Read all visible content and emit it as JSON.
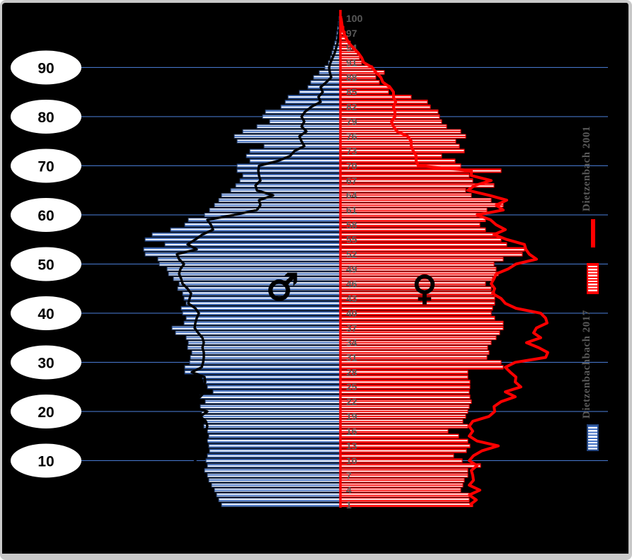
{
  "frame": {
    "background": "#000000",
    "border_color": "#C9C9C9"
  },
  "colors": {
    "male_bar_stripe": "#4472C4",
    "male_bar_outline": "#1F3864",
    "female_bar_stripe": "#FF0000",
    "female_bar_outline": "#FF0000",
    "male_2001_line": "#000000",
    "female_2001_line": "#FF0000",
    "center_axis_line": "#FF0000",
    "gridline": "#4472C4",
    "axis_tick_text": "#595959",
    "oval_fill": "#FFFFFF",
    "oval_text": "#000000",
    "sex_symbol": "#000000"
  },
  "icons": {
    "male": "♂",
    "female": "♀"
  },
  "legend": {
    "entry_2001": {
      "label": "Dietzenbach 2001"
    },
    "entry_2017": {
      "label": "Dietzenbachbach 2017"
    }
  },
  "chart_data": {
    "type": "bar",
    "subtype": "population-pyramid",
    "title": "",
    "xlabel": "",
    "ylabel": "",
    "grid": true,
    "legend_position": "right",
    "age_axis": {
      "tick_labels": [
        1,
        4,
        7,
        10,
        13,
        16,
        19,
        22,
        25,
        28,
        31,
        34,
        37,
        40,
        43,
        46,
        49,
        52,
        55,
        58,
        61,
        64,
        67,
        70,
        73,
        76,
        79,
        82,
        85,
        88,
        91,
        94,
        97,
        100
      ],
      "decade_labels": [
        10,
        20,
        30,
        40,
        50,
        60,
        70,
        80,
        90
      ]
    },
    "value_scale": "relative half-width units (no numeric axis shown in chart)",
    "series": [
      {
        "name": "male_2017",
        "side": "left",
        "style": "striped-bar",
        "values": [
          168,
          172,
          175,
          178,
          182,
          186,
          188,
          192,
          188,
          190,
          188,
          185,
          186,
          188,
          186,
          188,
          193,
          191,
          195,
          196,
          198,
          191,
          198,
          180,
          188,
          193,
          195,
          220,
          220,
          213,
          212,
          210,
          216,
          215,
          218,
          233,
          238,
          221,
          218,
          223,
          225,
          218,
          221,
          223,
          230,
          228,
          236,
          243,
          245,
          256,
          258,
          276,
          278,
          248,
          276,
          266,
          240,
          220,
          215,
          192,
          185,
          178,
          172,
          168,
          155,
          148,
          142,
          138,
          146,
          146,
          128,
          133,
          128,
          108,
          146,
          150,
          138,
          118,
          100,
          110,
          106,
          84,
          78,
          74,
          58,
          46,
          42,
          38,
          30,
          22,
          17,
          14,
          12,
          10,
          8,
          6,
          5,
          4,
          3,
          2
        ]
      },
      {
        "name": "female_2017",
        "side": "right",
        "style": "striped-bar",
        "values": [
          187,
          182,
          182,
          170,
          173,
          175,
          180,
          180,
          198,
          172,
          160,
          178,
          183,
          180,
          167,
          152,
          180,
          173,
          177,
          180,
          182,
          185,
          183,
          182,
          183,
          183,
          180,
          180,
          230,
          227,
          207,
          210,
          208,
          213,
          220,
          225,
          230,
          230,
          218,
          213,
          215,
          218,
          218,
          218,
          213,
          205,
          215,
          223,
          220,
          217,
          230,
          257,
          260,
          235,
          227,
          220,
          205,
          197,
          205,
          200,
          207,
          230,
          213,
          185,
          177,
          217,
          187,
          182,
          227,
          170,
          162,
          143,
          175,
          168,
          163,
          177,
          170,
          150,
          143,
          140,
          138,
          127,
          123,
          100,
          68,
          70,
          55,
          50,
          62,
          45,
          30,
          27,
          24,
          20,
          14,
          10,
          7,
          5,
          3,
          2
        ]
      },
      {
        "name": "male_2001",
        "side": "left",
        "style": "line",
        "values": [
          180,
          203,
          215,
          233,
          225,
          196,
          193,
          225,
          210,
          205,
          205,
          192,
          188,
          190,
          189,
          190,
          188,
          190,
          198,
          188,
          212,
          220,
          198,
          192,
          194,
          191,
          192,
          210,
          196,
          194,
          193,
          193,
          195,
          193,
          195,
          201,
          206,
          205,
          203,
          200,
          205,
          215,
          213,
          211,
          216,
          223,
          225,
          228,
          226,
          221,
          228,
          231,
          203,
          216,
          205,
          195,
          180,
          183,
          188,
          150,
          118,
          113,
          115,
          95,
          118,
          120,
          113,
          115,
          116,
          115,
          88,
          71,
          65,
          51,
          55,
          58,
          48,
          55,
          51,
          55,
          50,
          41,
          28,
          31,
          25,
          28,
          20,
          13,
          15,
          16,
          14,
          11,
          8,
          6,
          4,
          3,
          2,
          1,
          1,
          0
        ]
      },
      {
        "name": "female_2001",
        "side": "right",
        "style": "line",
        "values": [
          183,
          192,
          182,
          197,
          182,
          188,
          187,
          185,
          193,
          182,
          188,
          200,
          223,
          193,
          182,
          187,
          182,
          187,
          210,
          218,
          217,
          227,
          247,
          233,
          255,
          247,
          248,
          240,
          233,
          247,
          290,
          293,
          280,
          263,
          283,
          273,
          277,
          292,
          290,
          283,
          248,
          233,
          227,
          215,
          218,
          213,
          217,
          220,
          237,
          248,
          277,
          267,
          262,
          260,
          235,
          217,
          233,
          220,
          212,
          193,
          230,
          220,
          235,
          210,
          180,
          190,
          213,
          185,
          185,
          110,
          107,
          107,
          103,
          100,
          100,
          95,
          80,
          75,
          72,
          77,
          77,
          75,
          78,
          75,
          75,
          70,
          60,
          57,
          50,
          45,
          33,
          30,
          25,
          18,
          12,
          8,
          5,
          3,
          2,
          1
        ]
      }
    ],
    "layout": {
      "center_x": 478,
      "age1_y": 710,
      "age_dy": 6.95,
      "grid_x1": 60,
      "grid_x2": 856
    }
  }
}
